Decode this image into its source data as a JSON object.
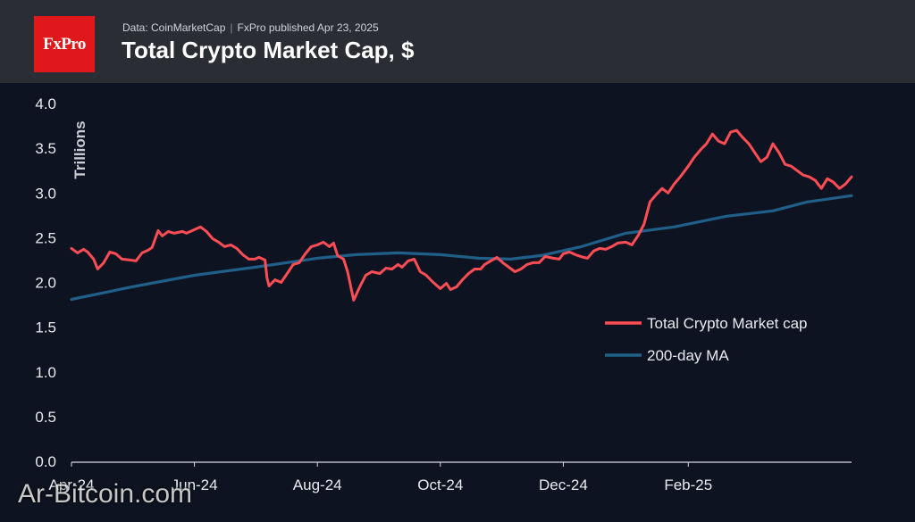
{
  "header": {
    "logo_text": "FxPro",
    "source_text": "Data: CoinMarketCap",
    "published_text": "FxPro published Apr 23, 2025",
    "title": "Total Crypto Market Cap, $"
  },
  "watermark": "Ar-Bitcoin.com",
  "colors": {
    "background": "#0e1321",
    "header": "#2b2d35",
    "logo": "#e0181b",
    "market_cap": "#ff4d55",
    "ma": "#1f5f88"
  },
  "chart_data": {
    "type": "line",
    "title": "Total Crypto Market Cap, $",
    "ylabel": "Trillions",
    "xlabel": "",
    "ylim": [
      0,
      4.0
    ],
    "yticks": [
      "0.0",
      "0.5",
      "1.0",
      "1.5",
      "2.0",
      "2.5",
      "3.0",
      "3.5",
      "4.0"
    ],
    "xlim": [
      "2024-04-01",
      "2025-04-23"
    ],
    "xticks": [
      {
        "label": "Apr-24",
        "date": "2024-04-01"
      },
      {
        "label": "Jun-24",
        "date": "2024-06-01"
      },
      {
        "label": "Aug-24",
        "date": "2024-08-01"
      },
      {
        "label": "Oct-24",
        "date": "2024-10-01"
      },
      {
        "label": "Dec-24",
        "date": "2024-12-01"
      },
      {
        "label": "Feb-25",
        "date": "2025-02-01"
      }
    ],
    "grid": false,
    "legend_position": "center-right",
    "series": [
      {
        "name": "Total Crypto Market cap",
        "color": "#ff4d55",
        "points": [
          [
            "2024-04-01",
            2.38
          ],
          [
            "2024-04-04",
            2.33
          ],
          [
            "2024-04-07",
            2.37
          ],
          [
            "2024-04-09",
            2.34
          ],
          [
            "2024-04-12",
            2.26
          ],
          [
            "2024-04-14",
            2.15
          ],
          [
            "2024-04-17",
            2.22
          ],
          [
            "2024-04-20",
            2.34
          ],
          [
            "2024-04-23",
            2.32
          ],
          [
            "2024-04-26",
            2.26
          ],
          [
            "2024-04-30",
            2.25
          ],
          [
            "2024-05-03",
            2.24
          ],
          [
            "2024-05-06",
            2.33
          ],
          [
            "2024-05-09",
            2.36
          ],
          [
            "2024-05-11",
            2.39
          ],
          [
            "2024-05-14",
            2.58
          ],
          [
            "2024-05-16",
            2.52
          ],
          [
            "2024-05-19",
            2.57
          ],
          [
            "2024-05-22",
            2.55
          ],
          [
            "2024-05-26",
            2.57
          ],
          [
            "2024-05-28",
            2.55
          ],
          [
            "2024-06-01",
            2.59
          ],
          [
            "2024-06-04",
            2.62
          ],
          [
            "2024-06-07",
            2.57
          ],
          [
            "2024-06-10",
            2.49
          ],
          [
            "2024-06-13",
            2.45
          ],
          [
            "2024-06-16",
            2.4
          ],
          [
            "2024-06-19",
            2.42
          ],
          [
            "2024-06-22",
            2.38
          ],
          [
            "2024-06-25",
            2.31
          ],
          [
            "2024-06-28",
            2.26
          ],
          [
            "2024-07-01",
            2.26
          ],
          [
            "2024-07-03",
            2.28
          ],
          [
            "2024-07-06",
            2.25
          ],
          [
            "2024-07-07",
            2.05
          ],
          [
            "2024-07-08",
            1.96
          ],
          [
            "2024-07-11",
            2.03
          ],
          [
            "2024-07-14",
            2.0
          ],
          [
            "2024-07-17",
            2.1
          ],
          [
            "2024-07-20",
            2.2
          ],
          [
            "2024-07-23",
            2.22
          ],
          [
            "2024-07-26",
            2.32
          ],
          [
            "2024-07-29",
            2.4
          ],
          [
            "2024-08-01",
            2.42
          ],
          [
            "2024-08-04",
            2.45
          ],
          [
            "2024-08-07",
            2.4
          ],
          [
            "2024-08-09",
            2.44
          ],
          [
            "2024-08-11",
            2.3
          ],
          [
            "2024-08-14",
            2.26
          ],
          [
            "2024-08-16",
            2.12
          ],
          [
            "2024-08-19",
            1.8
          ],
          [
            "2024-08-22",
            1.95
          ],
          [
            "2024-08-25",
            2.08
          ],
          [
            "2024-08-28",
            2.12
          ],
          [
            "2024-09-01",
            2.1
          ],
          [
            "2024-09-04",
            2.16
          ],
          [
            "2024-09-07",
            2.15
          ],
          [
            "2024-09-10",
            2.2
          ],
          [
            "2024-09-12",
            2.17
          ],
          [
            "2024-09-15",
            2.24
          ],
          [
            "2024-09-18",
            2.26
          ],
          [
            "2024-09-21",
            2.12
          ],
          [
            "2024-09-24",
            2.08
          ],
          [
            "2024-09-27",
            2.01
          ],
          [
            "2024-10-01",
            1.93
          ],
          [
            "2024-10-04",
            1.99
          ],
          [
            "2024-10-06",
            1.92
          ],
          [
            "2024-10-09",
            1.95
          ],
          [
            "2024-10-12",
            2.03
          ],
          [
            "2024-10-15",
            2.1
          ],
          [
            "2024-10-18",
            2.15
          ],
          [
            "2024-10-21",
            2.15
          ],
          [
            "2024-10-23",
            2.2
          ],
          [
            "2024-10-26",
            2.24
          ],
          [
            "2024-10-29",
            2.28
          ],
          [
            "2024-11-01",
            2.22
          ],
          [
            "2024-11-04",
            2.17
          ],
          [
            "2024-11-07",
            2.12
          ],
          [
            "2024-11-10",
            2.15
          ],
          [
            "2024-11-13",
            2.2
          ],
          [
            "2024-11-16",
            2.22
          ],
          [
            "2024-11-19",
            2.22
          ],
          [
            "2024-11-22",
            2.29
          ],
          [
            "2024-11-26",
            2.27
          ],
          [
            "2024-11-29",
            2.26
          ],
          [
            "2024-12-01",
            2.32
          ],
          [
            "2024-12-04",
            2.34
          ],
          [
            "2024-12-07",
            2.31
          ],
          [
            "2024-12-11",
            2.28
          ],
          [
            "2024-12-13",
            2.27
          ],
          [
            "2024-12-16",
            2.35
          ],
          [
            "2024-12-19",
            2.38
          ],
          [
            "2024-12-22",
            2.37
          ],
          [
            "2024-12-25",
            2.4
          ],
          [
            "2024-12-28",
            2.44
          ],
          [
            "2025-01-01",
            2.45
          ],
          [
            "2025-01-04",
            2.42
          ],
          [
            "2025-01-07",
            2.52
          ],
          [
            "2025-01-10",
            2.65
          ],
          [
            "2025-01-13",
            2.9
          ],
          [
            "2025-01-16",
            2.98
          ],
          [
            "2025-01-19",
            3.05
          ],
          [
            "2025-01-22",
            3.0
          ],
          [
            "2025-01-25",
            3.1
          ],
          [
            "2025-01-28",
            3.18
          ],
          [
            "2025-02-01",
            3.3
          ],
          [
            "2025-02-04",
            3.4
          ],
          [
            "2025-02-07",
            3.48
          ],
          [
            "2025-02-10",
            3.55
          ],
          [
            "2025-02-13",
            3.66
          ],
          [
            "2025-02-16",
            3.58
          ],
          [
            "2025-02-19",
            3.55
          ],
          [
            "2025-02-22",
            3.68
          ],
          [
            "2025-02-25",
            3.7
          ],
          [
            "2025-02-28",
            3.62
          ],
          [
            "2025-03-03",
            3.55
          ],
          [
            "2025-03-06",
            3.45
          ],
          [
            "2025-03-09",
            3.35
          ],
          [
            "2025-03-12",
            3.4
          ],
          [
            "2025-03-15",
            3.55
          ],
          [
            "2025-03-18",
            3.45
          ],
          [
            "2025-03-21",
            3.32
          ],
          [
            "2025-03-24",
            3.3
          ],
          [
            "2025-03-27",
            3.25
          ],
          [
            "2025-03-30",
            3.2
          ],
          [
            "2025-04-02",
            3.18
          ],
          [
            "2025-04-05",
            3.14
          ],
          [
            "2025-04-08",
            3.05
          ],
          [
            "2025-04-11",
            3.16
          ],
          [
            "2025-04-14",
            3.12
          ],
          [
            "2025-04-17",
            3.05
          ],
          [
            "2025-04-20",
            3.1
          ],
          [
            "2025-04-23",
            3.18
          ]
        ]
      },
      {
        "name": "200-day MA",
        "color": "#1f5f88",
        "points": [
          [
            "2024-04-01",
            1.81
          ],
          [
            "2024-05-01",
            1.95
          ],
          [
            "2024-06-01",
            2.08
          ],
          [
            "2024-07-01",
            2.17
          ],
          [
            "2024-08-01",
            2.27
          ],
          [
            "2024-08-20",
            2.31
          ],
          [
            "2024-09-10",
            2.33
          ],
          [
            "2024-10-01",
            2.31
          ],
          [
            "2024-10-20",
            2.27
          ],
          [
            "2024-11-05",
            2.26
          ],
          [
            "2024-11-20",
            2.3
          ],
          [
            "2024-12-10",
            2.4
          ],
          [
            "2025-01-01",
            2.55
          ],
          [
            "2025-01-25",
            2.62
          ],
          [
            "2025-02-20",
            2.74
          ],
          [
            "2025-03-15",
            2.8
          ],
          [
            "2025-04-01",
            2.9
          ],
          [
            "2025-04-23",
            2.97
          ]
        ]
      }
    ]
  }
}
